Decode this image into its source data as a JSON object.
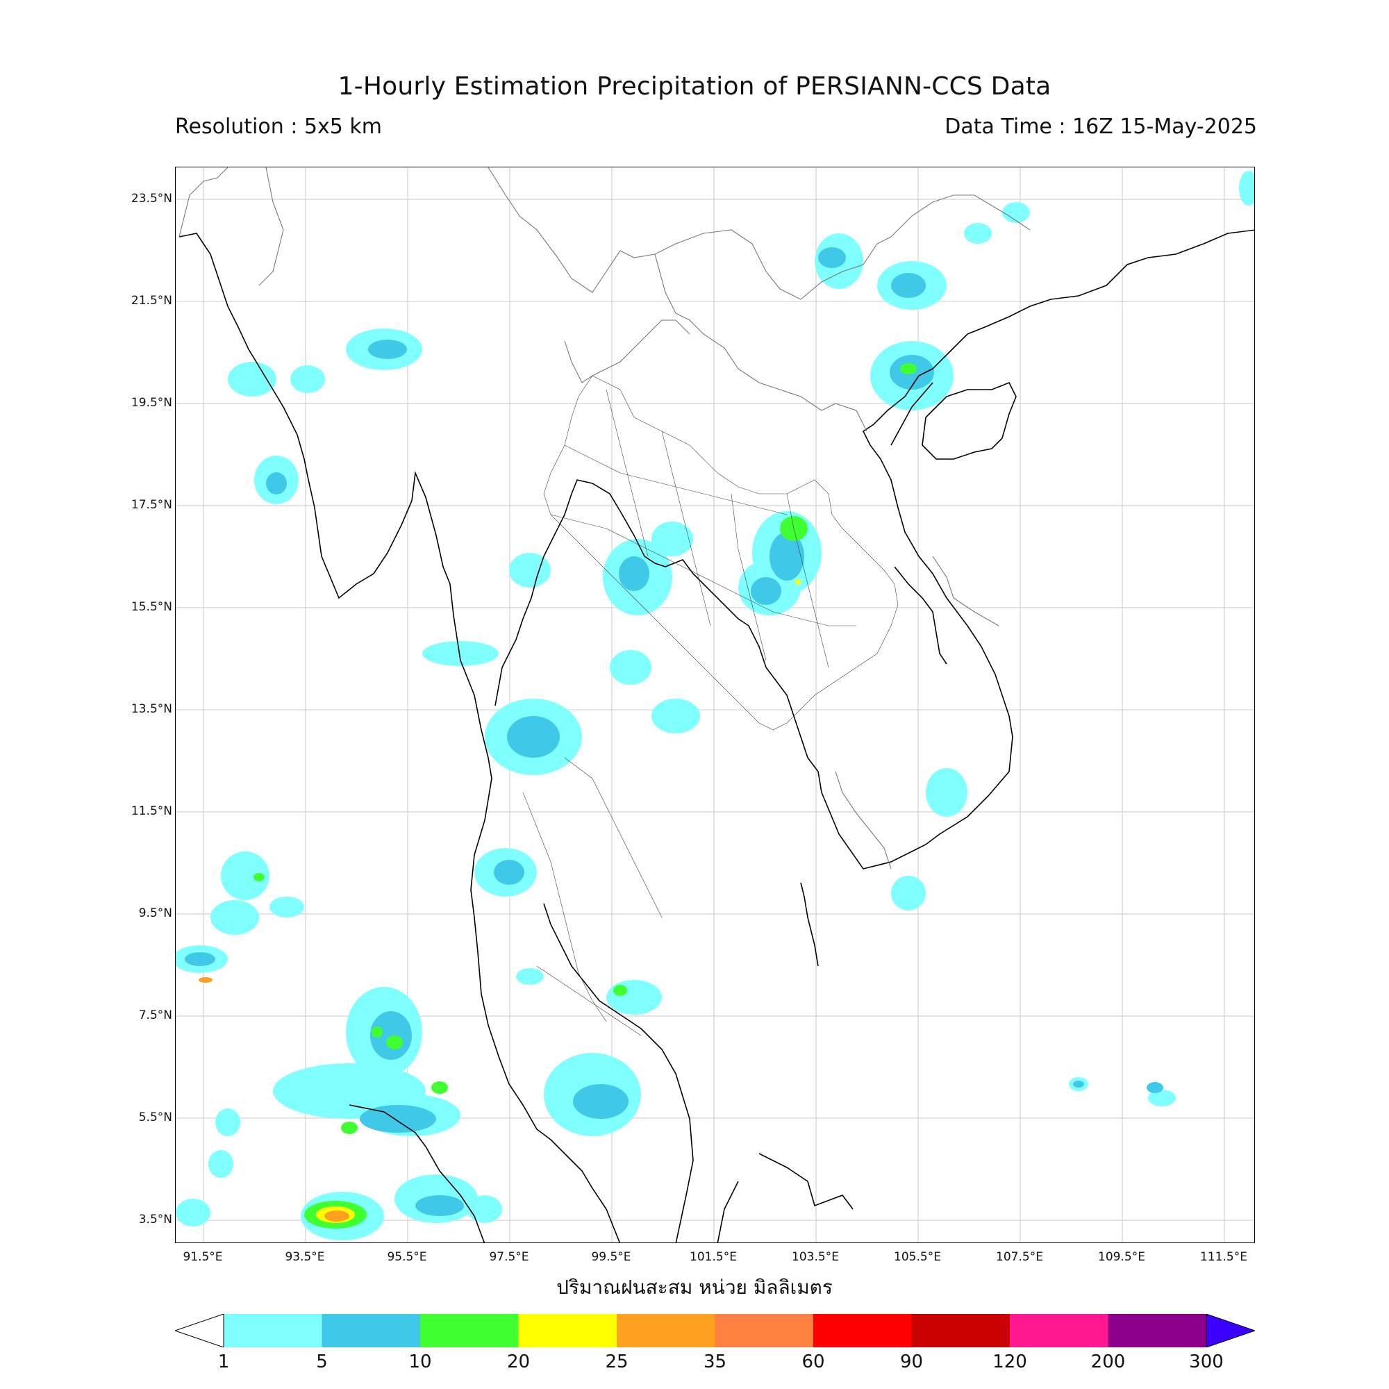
{
  "header": {
    "title": "1-Hourly Estimation Precipitation of PERSIANN-CCS Data",
    "resolution": "Resolution : 5x5 km",
    "data_time": "Data Time : 16Z 15-May-2025"
  },
  "axes": {
    "lat_ticks": [
      "23.5°N",
      "21.5°N",
      "19.5°N",
      "17.5°N",
      "15.5°N",
      "13.5°N",
      "11.5°N",
      "9.5°N",
      "7.5°N",
      "5.5°N",
      "3.5°N"
    ],
    "lon_ticks": [
      "91.5°E",
      "93.5°E",
      "95.5°E",
      "97.5°E",
      "99.5°E",
      "101.5°E",
      "103.5°E",
      "105.5°E",
      "107.5°E",
      "109.5°E",
      "111.5°E"
    ],
    "xlabel": "ปริมาณฝนสะสม หน่วย มิลลิเมตร",
    "grid": true
  },
  "colorbar": {
    "levels": [
      "1",
      "5",
      "10",
      "20",
      "25",
      "35",
      "60",
      "90",
      "120",
      "200",
      "300"
    ],
    "colors": [
      "#80ffff",
      "#40c8e8",
      "#40ff30",
      "#ffff00",
      "#ffa020",
      "#ff8040",
      "#ff0000",
      "#c80000",
      "#ff1890",
      "#8c008c",
      "#3c00ff"
    ],
    "under_color": "#ffffff",
    "extend": "both"
  }
}
